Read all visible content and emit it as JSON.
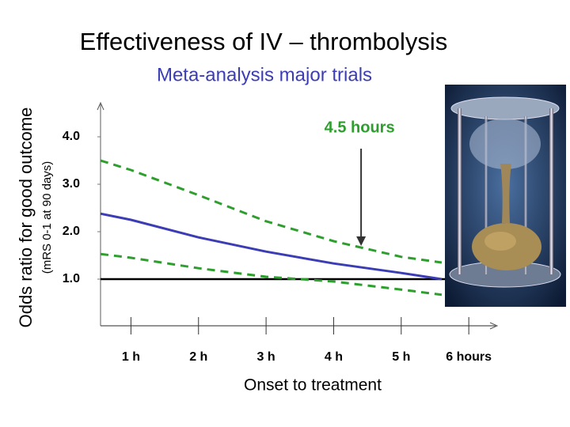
{
  "chart_data": {
    "type": "line",
    "title": "Effectiveness of IV – thrombolysis",
    "subtitle": "Meta-analysis major trials",
    "y_label": "Odds ratio for good outcome",
    "y_sublabel": "(mRS 0-1 at 90 days)",
    "x_label": "Onset to treatment",
    "x": [
      0.55,
      1,
      2,
      3,
      4,
      5,
      5.6
    ],
    "series": [
      {
        "color": "#3c3cb4",
        "dashed": false,
        "values": [
          2.38,
          2.25,
          1.88,
          1.58,
          1.33,
          1.13,
          1.0
        ]
      },
      {
        "color": "#2e9e2e",
        "dashed": true,
        "values": [
          3.5,
          3.3,
          2.77,
          2.22,
          1.8,
          1.47,
          1.35
        ]
      },
      {
        "color": "#2e9e2e",
        "dashed": true,
        "values": [
          1.53,
          1.45,
          1.23,
          1.05,
          0.95,
          0.78,
          0.67
        ]
      }
    ],
    "reference_line": 1,
    "annotation": {
      "text": "4.5 hours",
      "x": 4.5,
      "y": 1.7,
      "color": "#2e9e2e"
    },
    "xlim": [
      0.55,
      6.42
    ],
    "ylim": [
      0,
      4.7
    ],
    "xticks": [
      {
        "value": 1,
        "label": "1 h"
      },
      {
        "value": 2,
        "label": "2 h"
      },
      {
        "value": 3,
        "label": "3 h"
      },
      {
        "value": 4,
        "label": "4 h"
      },
      {
        "value": 5,
        "label": "5 h"
      },
      {
        "value": 6,
        "label": "6 hours"
      }
    ],
    "yticks": [
      {
        "value": 1,
        "label": "1.0"
      },
      {
        "value": 2,
        "label": "2.0"
      },
      {
        "value": 3,
        "label": "3.0"
      },
      {
        "value": 4,
        "label": "4.0"
      }
    ]
  }
}
